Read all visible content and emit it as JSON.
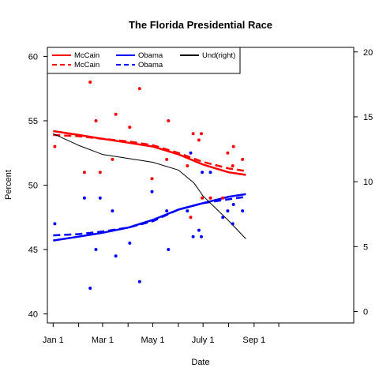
{
  "chart_data": {
    "type": "scatter",
    "title": "The Florida Presidential Race",
    "xlabel": "Date",
    "ylabel": "Percent",
    "xlim": [
      "2007-12-25",
      "2008-12-31"
    ],
    "ylim": [
      39.3,
      60.7
    ],
    "y2lim": [
      -0.88,
      20.35
    ],
    "x_ticks": [
      "2008-01-01",
      "2008-02-01",
      "2008-03-01",
      "2008-04-01",
      "2008-05-01",
      "2008-06-01",
      "2008-07-01",
      "2008-08-01",
      "2008-09-01",
      "2008-10-01"
    ],
    "x_tick_labels": [
      {
        "date": "2008-01-01",
        "label": "Jan 1"
      },
      {
        "date": "2008-03-01",
        "label": "Mar 1"
      },
      {
        "date": "2008-05-01",
        "label": "May 1"
      },
      {
        "date": "2008-07-01",
        "label": "July 1"
      },
      {
        "date": "2008-09-01",
        "label": "Sep 1"
      }
    ],
    "y_ticks": [
      40,
      45,
      50,
      55,
      60
    ],
    "y2_ticks": [
      0,
      5,
      10,
      15,
      20
    ],
    "grid": false,
    "legend_position": "top-left",
    "colors": {
      "mccain": "#ff0000",
      "obama": "#0000ff",
      "und": "#000000"
    },
    "legend": [
      {
        "label": "McCain",
        "color": "#ff0000",
        "style": "solid"
      },
      {
        "label": "McCain",
        "color": "#ff0000",
        "style": "dashed"
      },
      {
        "label": "Obama",
        "color": "#0000ff",
        "style": "solid"
      },
      {
        "label": "Obama",
        "color": "#0000ff",
        "style": "dashed"
      },
      {
        "label": "Und(right)",
        "color": "#000000",
        "style": "solid"
      }
    ],
    "points": {
      "mccain": [
        {
          "x": "2008-01-03",
          "y": 53.0
        },
        {
          "x": "2008-02-08",
          "y": 51.0
        },
        {
          "x": "2008-02-15",
          "y": 58.0
        },
        {
          "x": "2008-02-22",
          "y": 55.0
        },
        {
          "x": "2008-02-27",
          "y": 51.0
        },
        {
          "x": "2008-03-13",
          "y": 52.0
        },
        {
          "x": "2008-03-17",
          "y": 55.5
        },
        {
          "x": "2008-04-03",
          "y": 54.5
        },
        {
          "x": "2008-04-15",
          "y": 57.5
        },
        {
          "x": "2008-04-30",
          "y": 50.5
        },
        {
          "x": "2008-05-18",
          "y": 52.0
        },
        {
          "x": "2008-05-20",
          "y": 55.0
        },
        {
          "x": "2008-06-12",
          "y": 51.5
        },
        {
          "x": "2008-06-16",
          "y": 47.5
        },
        {
          "x": "2008-06-19",
          "y": 54.0
        },
        {
          "x": "2008-06-26",
          "y": 53.5
        },
        {
          "x": "2008-06-29",
          "y": 54.0
        },
        {
          "x": "2008-06-30",
          "y": 49.0
        },
        {
          "x": "2008-07-10",
          "y": 49.0
        },
        {
          "x": "2008-07-25",
          "y": 49.0
        },
        {
          "x": "2008-07-31",
          "y": 52.5
        },
        {
          "x": "2008-08-06",
          "y": 51.5
        },
        {
          "x": "2008-08-07",
          "y": 53.0
        },
        {
          "x": "2008-08-18",
          "y": 52.0
        }
      ],
      "obama": [
        {
          "x": "2008-01-03",
          "y": 47.0
        },
        {
          "x": "2008-02-08",
          "y": 49.0
        },
        {
          "x": "2008-02-15",
          "y": 42.0
        },
        {
          "x": "2008-02-22",
          "y": 45.0
        },
        {
          "x": "2008-02-27",
          "y": 49.0
        },
        {
          "x": "2008-03-13",
          "y": 48.0
        },
        {
          "x": "2008-03-17",
          "y": 44.5
        },
        {
          "x": "2008-04-03",
          "y": 45.5
        },
        {
          "x": "2008-04-15",
          "y": 42.5
        },
        {
          "x": "2008-04-30",
          "y": 49.5
        },
        {
          "x": "2008-05-18",
          "y": 48.0
        },
        {
          "x": "2008-05-20",
          "y": 45.0
        },
        {
          "x": "2008-06-12",
          "y": 48.0
        },
        {
          "x": "2008-06-16",
          "y": 52.5
        },
        {
          "x": "2008-06-19",
          "y": 46.0
        },
        {
          "x": "2008-06-26",
          "y": 46.5
        },
        {
          "x": "2008-06-29",
          "y": 46.0
        },
        {
          "x": "2008-06-30",
          "y": 51.0
        },
        {
          "x": "2008-07-10",
          "y": 51.0
        },
        {
          "x": "2008-07-25",
          "y": 47.5
        },
        {
          "x": "2008-07-31",
          "y": 48.0
        },
        {
          "x": "2008-08-06",
          "y": 47.0
        },
        {
          "x": "2008-08-07",
          "y": 48.5
        },
        {
          "x": "2008-08-18",
          "y": 48.0
        }
      ]
    },
    "series": [
      {
        "key": "mccain_solid",
        "color": "#ff0000",
        "style": "solid",
        "axis": "left",
        "x": [
          "2008-01-01",
          "2008-02-01",
          "2008-03-01",
          "2008-04-01",
          "2008-05-01",
          "2008-06-01",
          "2008-07-01",
          "2008-08-01",
          "2008-08-22"
        ],
        "y": [
          54.2,
          53.9,
          53.6,
          53.3,
          53.0,
          52.4,
          51.6,
          51.0,
          50.8
        ]
      },
      {
        "key": "mccain_dashed",
        "color": "#ff0000",
        "style": "dashed",
        "axis": "left",
        "x": [
          "2008-01-01",
          "2008-02-01",
          "2008-03-01",
          "2008-04-01",
          "2008-05-01",
          "2008-06-01",
          "2008-07-01",
          "2008-08-01",
          "2008-08-22"
        ],
        "y": [
          53.9,
          53.8,
          53.6,
          53.4,
          53.1,
          52.5,
          51.8,
          51.3,
          51.1
        ]
      },
      {
        "key": "obama_solid",
        "color": "#0000ff",
        "style": "solid",
        "axis": "left",
        "x": [
          "2008-01-01",
          "2008-02-01",
          "2008-03-01",
          "2008-04-01",
          "2008-05-01",
          "2008-06-01",
          "2008-07-01",
          "2008-08-01",
          "2008-08-22"
        ],
        "y": [
          45.7,
          46.0,
          46.3,
          46.7,
          47.3,
          48.1,
          48.6,
          49.1,
          49.3
        ]
      },
      {
        "key": "obama_dashed",
        "color": "#0000ff",
        "style": "dashed",
        "axis": "left",
        "x": [
          "2008-01-01",
          "2008-02-01",
          "2008-03-01",
          "2008-04-01",
          "2008-05-01",
          "2008-06-01",
          "2008-07-01",
          "2008-08-01",
          "2008-08-22"
        ],
        "y": [
          46.1,
          46.2,
          46.4,
          46.7,
          47.2,
          48.1,
          48.6,
          48.9,
          49.1
        ]
      },
      {
        "key": "und",
        "color": "#000000",
        "style": "solid",
        "axis": "right",
        "x": [
          "2008-01-01",
          "2008-02-01",
          "2008-03-01",
          "2008-04-01",
          "2008-05-01",
          "2008-06-01",
          "2008-06-20",
          "2008-07-01",
          "2008-08-01",
          "2008-08-22"
        ],
        "y": [
          13.7,
          12.8,
          12.1,
          11.8,
          11.5,
          10.9,
          9.9,
          8.9,
          7.0,
          5.6
        ]
      }
    ]
  }
}
